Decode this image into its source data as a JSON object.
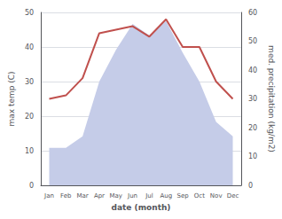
{
  "chart_data": {
    "type": "line",
    "xlabel": "date (month)",
    "ylabel": "max temp (C)",
    "y2label": "med. precipitation (kg/m2)",
    "categories": [
      "Jan",
      "Feb",
      "Mar",
      "Apr",
      "May",
      "Jun",
      "Jul",
      "Aug",
      "Sep",
      "Oct",
      "Nov",
      "Dec"
    ],
    "series": [
      {
        "type": "area",
        "color": "#c5cce8",
        "axis": "y2",
        "values": [
          13,
          13,
          17,
          36,
          47,
          56,
          52,
          57,
          46,
          36,
          22,
          17
        ]
      },
      {
        "type": "line",
        "color": "#c0504d",
        "values": [
          25,
          26,
          31,
          44,
          45,
          46,
          43,
          48,
          40,
          40,
          30,
          25
        ]
      }
    ],
    "ylim": [
      0,
      50
    ],
    "yticks": [
      0,
      10,
      20,
      30,
      40,
      50
    ],
    "y2lim": [
      0,
      60
    ],
    "y2ticks": [
      0,
      10,
      20,
      30,
      40,
      50,
      60
    ],
    "grid": true
  }
}
